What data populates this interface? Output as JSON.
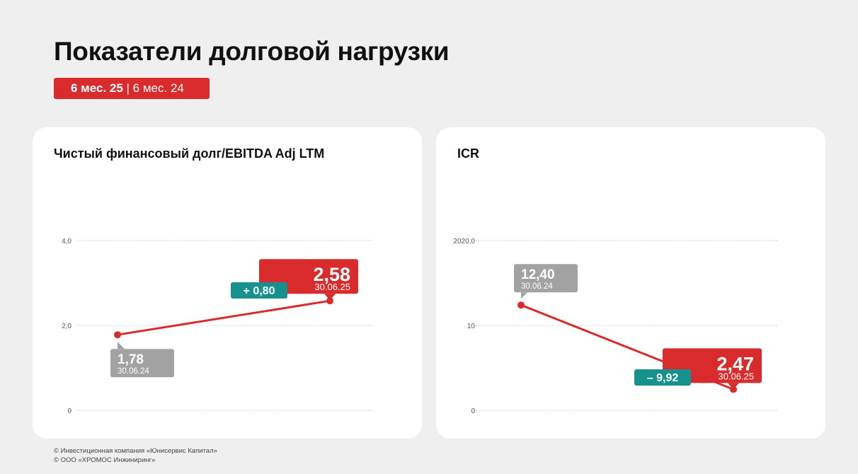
{
  "header": {
    "title": "Показатели долговой нагрузки",
    "period_current": "6 мес. 25",
    "period_separator": " | ",
    "period_previous": "6 мес. 24"
  },
  "colors": {
    "accent_red": "#d92b2b",
    "teal": "#16918e",
    "gray_label": "#a2a2a2",
    "background": "#efefef"
  },
  "chart_data": [
    {
      "type": "line",
      "title": "Чистый финансовый долг/EBITDA Adj LTM",
      "y_ticks": [
        "4,0",
        "2,0",
        "0"
      ],
      "ylim": [
        0,
        4
      ],
      "grid": true,
      "points": [
        {
          "x": "30.06.24",
          "y": 1.78,
          "label": "1,78",
          "date_label": "30.06.24"
        },
        {
          "x": "30.06.25",
          "y": 2.58,
          "label": "2,58",
          "date_label": "30.06.25"
        }
      ],
      "change": "+ 0,80"
    },
    {
      "type": "line",
      "title": "ICR",
      "y_ticks": [
        "2020,0",
        "10",
        "0"
      ],
      "ylim": [
        0,
        20
      ],
      "grid": true,
      "points": [
        {
          "x": "30.06.24",
          "y": 12.4,
          "label": "12,40",
          "date_label": "30.06.24"
        },
        {
          "x": "30.06.25",
          "y": 2.47,
          "label": "2,47",
          "date_label": "30.06.25"
        }
      ],
      "change": "– 9,92"
    }
  ],
  "footer": {
    "line1": "© Инвестиционная компания «Юнисервис Капитал»",
    "line2": "© ООО «ХРОМОС Инжиниринг»"
  }
}
